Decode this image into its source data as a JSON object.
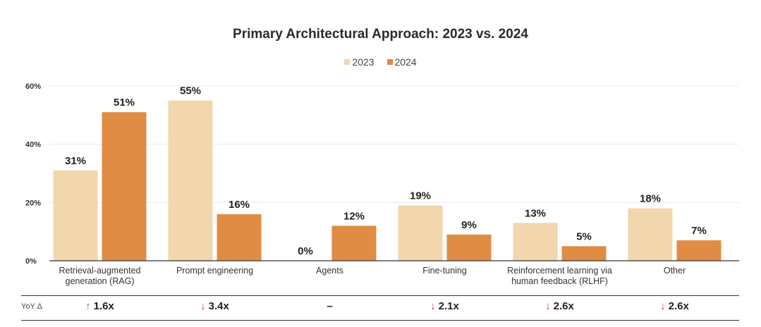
{
  "chart_data": {
    "type": "bar",
    "title": "Primary Architectural Approach: 2023 vs. 2024",
    "categories": [
      "Retrieval-augmented generation (RAG)",
      "Prompt engineering",
      "Agents",
      "Fine-tuning",
      "Reinforcement learning via human feedback (RLHF)",
      "Other"
    ],
    "category_lines": [
      [
        "Retrieval-augmented",
        "generation (RAG)"
      ],
      [
        "Prompt engineering"
      ],
      [
        "Agents"
      ],
      [
        "Fine-tuning"
      ],
      [
        "Reinforcement learning via",
        "human feedback (RLHF)"
      ],
      [
        "Other"
      ]
    ],
    "series": [
      {
        "name": "2023",
        "values": [
          31,
          55,
          0,
          19,
          13,
          18
        ],
        "labels": [
          "31%",
          "55%",
          "0%",
          "19%",
          "13%",
          "18%"
        ],
        "color": "#F2D6AE"
      },
      {
        "name": "2024",
        "values": [
          51,
          16,
          12,
          9,
          5,
          7
        ],
        "labels": [
          "51%",
          "16%",
          "12%",
          "9%",
          "5%",
          "7%"
        ],
        "color": "#E08C45"
      }
    ],
    "ylim": [
      0,
      60
    ],
    "yticks": [
      "0%",
      "20%",
      "40%",
      "60%"
    ],
    "ytick_values": [
      0,
      20,
      40,
      60
    ],
    "grid": true,
    "legend_position": "top-center"
  },
  "yoy": {
    "label": "YoY Δ",
    "items": [
      {
        "direction": "up",
        "value": "1.6x"
      },
      {
        "direction": "down",
        "value": "3.4x"
      },
      {
        "direction": "none",
        "value": "–"
      },
      {
        "direction": "down",
        "value": "2.1x"
      },
      {
        "direction": "down",
        "value": "2.6x"
      },
      {
        "direction": "down",
        "value": "2.6x"
      }
    ],
    "colors": {
      "up": "#3A9A4A",
      "down": "#C9402E"
    }
  }
}
